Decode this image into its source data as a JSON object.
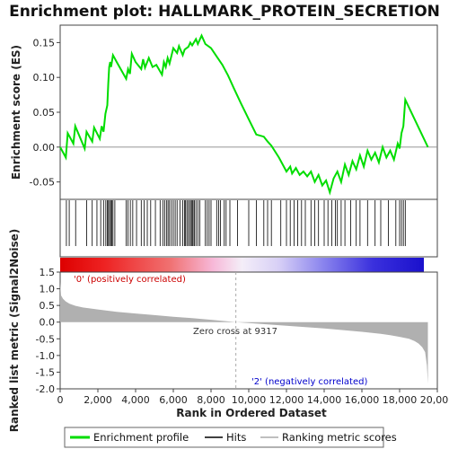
{
  "chart_data": {
    "type": "line",
    "title": "Enrichment plot: HALLMARK_PROTEIN_SECRETION",
    "xlabel": "Rank in Ordered Dataset",
    "ylabel_top": "Enrichment score (ES)",
    "ylabel_bottom": "Ranked list metric (Signal2Noise)",
    "xlim": [
      0,
      20000
    ],
    "x_ticks": [
      0,
      2000,
      4000,
      6000,
      8000,
      10000,
      12000,
      14000,
      16000,
      18000,
      20000
    ],
    "x_tick_labels": [
      "0",
      "2,000",
      "4,000",
      "6,000",
      "8,000",
      "10,000",
      "12,000",
      "14,000",
      "16,000",
      "18,000",
      "20,000"
    ],
    "es_ylim": [
      -0.075,
      0.175
    ],
    "es_ticks": [
      -0.05,
      0.0,
      0.05,
      0.1,
      0.15
    ],
    "es_tick_labels": [
      "-0.05",
      "0.00",
      "0.05",
      "0.10",
      "0.15"
    ],
    "metric_ylim": [
      -2.0,
      1.5
    ],
    "metric_ticks": [
      -2.0,
      -1.5,
      -1.0,
      -0.5,
      0.0,
      0.5,
      1.0,
      1.5
    ],
    "metric_tick_labels": [
      "-2.0",
      "-1.5",
      "-1.0",
      "-0.5",
      "0.0",
      "0.5",
      "1.0",
      "1.5"
    ],
    "series": [
      {
        "name": "Enrichment profile",
        "color": "#00dd00",
        "x": [
          0,
          300,
          400,
          700,
          800,
          1300,
          1400,
          1700,
          1800,
          2100,
          2200,
          2300,
          2400,
          2500,
          2550,
          2600,
          2650,
          2700,
          2800,
          3000,
          3500,
          3600,
          3700,
          3800,
          4000,
          4300,
          4400,
          4500,
          4700,
          4900,
          5100,
          5400,
          5500,
          5600,
          5700,
          5800,
          6000,
          6200,
          6300,
          6500,
          6600,
          6800,
          6900,
          7000,
          7200,
          7300,
          7500,
          7700,
          8000,
          8300,
          8600,
          8900,
          9200,
          9600,
          10000,
          10400,
          10800,
          11000,
          11200,
          11600,
          12000,
          12200,
          12300,
          12500,
          12700,
          12900,
          13100,
          13300,
          13500,
          13700,
          13900,
          14100,
          14300,
          14500,
          14700,
          14900,
          15100,
          15300,
          15500,
          15700,
          15900,
          16100,
          16300,
          16500,
          16700,
          16900,
          17100,
          17300,
          17500,
          17700,
          17900,
          18000,
          18100,
          18200,
          18300,
          19500
        ],
        "y": [
          0.0,
          -0.015,
          0.02,
          0.005,
          0.03,
          -0.002,
          0.022,
          0.008,
          0.028,
          0.012,
          0.03,
          0.022,
          0.048,
          0.06,
          0.092,
          0.115,
          0.122,
          0.115,
          0.132,
          0.122,
          0.098,
          0.112,
          0.105,
          0.134,
          0.122,
          0.112,
          0.126,
          0.114,
          0.128,
          0.115,
          0.118,
          0.104,
          0.122,
          0.115,
          0.128,
          0.12,
          0.142,
          0.135,
          0.145,
          0.132,
          0.14,
          0.144,
          0.15,
          0.146,
          0.155,
          0.148,
          0.16,
          0.148,
          0.142,
          0.13,
          0.118,
          0.103,
          0.085,
          0.062,
          0.04,
          0.018,
          0.015,
          0.008,
          0.002,
          -0.015,
          -0.035,
          -0.028,
          -0.038,
          -0.03,
          -0.04,
          -0.035,
          -0.042,
          -0.035,
          -0.05,
          -0.04,
          -0.055,
          -0.048,
          -0.065,
          -0.045,
          -0.035,
          -0.05,
          -0.025,
          -0.04,
          -0.02,
          -0.032,
          -0.012,
          -0.028,
          -0.005,
          -0.018,
          -0.008,
          -0.022,
          0.0,
          -0.015,
          -0.005,
          -0.018,
          0.005,
          -0.002,
          0.02,
          0.03,
          0.068,
          0.0
        ]
      }
    ],
    "hits_label": "Hits",
    "metric_label": "Ranking metric scores",
    "zero_cross_label": "Zero cross at 9317",
    "zero_cross_x": 9317,
    "pos_label": "'0' (positively correlated)",
    "neg_label": "'2' (negatively correlated)",
    "hit_positions": [
      330,
      480,
      820,
      1400,
      1700,
      1950,
      2150,
      2300,
      2420,
      2500,
      2560,
      2620,
      2680,
      2740,
      2800,
      2900,
      3500,
      3600,
      3720,
      3850,
      4050,
      4300,
      4450,
      4620,
      4800,
      5050,
      5300,
      5450,
      5550,
      5650,
      5720,
      5800,
      5900,
      6000,
      6100,
      6200,
      6350,
      6500,
      6600,
      6650,
      6720,
      6800,
      6870,
      6950,
      7000,
      7050,
      7120,
      7200,
      7300,
      7400,
      7700,
      7800,
      7900,
      8000,
      8300,
      8400,
      8500,
      8700,
      8800,
      9000,
      9400,
      10000,
      10400,
      10800,
      11000,
      11200,
      11700,
      12000,
      12200,
      12400,
      12600,
      12800,
      13000,
      13300,
      13500,
      13700,
      14000,
      14200,
      14400,
      14600,
      14700,
      14900,
      15100,
      15400,
      15700,
      15900,
      16300,
      16700,
      17000,
      17400,
      17800,
      18000,
      18100,
      18200,
      18300
    ],
    "metric_curve": {
      "x": [
        0,
        50,
        150,
        300,
        500,
        800,
        1200,
        2000,
        3000,
        4000,
        5000,
        6000,
        7000,
        8000,
        9317,
        10000,
        11000,
        12000,
        13000,
        14000,
        15000,
        16000,
        17000,
        17500,
        18000,
        18500,
        18800,
        19000,
        19200,
        19350,
        19450,
        19500
      ],
      "y": [
        1.2,
        0.8,
        0.7,
        0.62,
        0.55,
        0.49,
        0.44,
        0.38,
        0.31,
        0.26,
        0.21,
        0.16,
        0.12,
        0.07,
        0.0,
        -0.03,
        -0.07,
        -0.11,
        -0.15,
        -0.19,
        -0.24,
        -0.29,
        -0.35,
        -0.39,
        -0.44,
        -0.5,
        -0.57,
        -0.64,
        -0.75,
        -0.9,
        -1.3,
        -1.85
      ]
    },
    "colors": {
      "line": "#00dd00",
      "hits": "#000000",
      "metric_fill": "#b0b0b0",
      "zero_line": "#aaaaaa",
      "pos_text": "#cc0000",
      "neg_text": "#0000cc"
    }
  }
}
